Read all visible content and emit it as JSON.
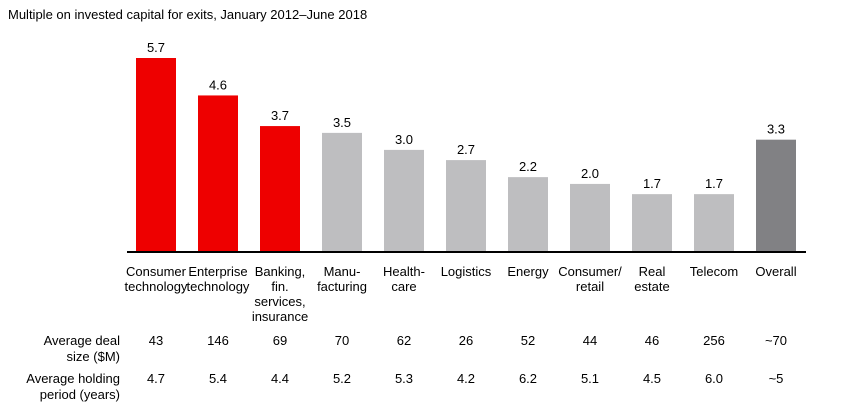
{
  "chart_data": {
    "type": "bar",
    "title": "Multiple on invested capital for exits, January 2012–June 2018",
    "categories": [
      "Consumer\ntechnology",
      "Enterprise\ntechnology",
      "Banking,\nfin.\nservices,\ninsurance",
      "Manu-\nfacturing",
      "Health-\ncare",
      "Logistics",
      "Energy",
      "Consumer/\nretail",
      "Real\nestate",
      "Telecom",
      "Overall"
    ],
    "values": [
      5.7,
      4.6,
      3.7,
      3.5,
      3.0,
      2.7,
      2.2,
      2.0,
      1.7,
      1.7,
      3.3
    ],
    "value_labels": [
      "5.7",
      "4.6",
      "3.7",
      "3.5",
      "3.0",
      "2.7",
      "2.2",
      "2.0",
      "1.7",
      "1.7",
      "3.3"
    ],
    "colors": [
      "#ee0000",
      "#ee0000",
      "#ee0000",
      "#bebec0",
      "#bebec0",
      "#bebec0",
      "#bebec0",
      "#bebec0",
      "#bebec0",
      "#bebec0",
      "#818184"
    ]
  },
  "table": {
    "rows": [
      {
        "label": "Average deal\nsize ($M)",
        "values": [
          "43",
          "146",
          "69",
          "70",
          "62",
          "26",
          "52",
          "44",
          "46",
          "256",
          "~70"
        ]
      },
      {
        "label": "Average holding\nperiod (years)",
        "values": [
          "4.7",
          "5.4",
          "4.4",
          "5.2",
          "5.3",
          "4.2",
          "6.2",
          "5.1",
          "4.5",
          "6.0",
          "~5"
        ]
      }
    ]
  }
}
